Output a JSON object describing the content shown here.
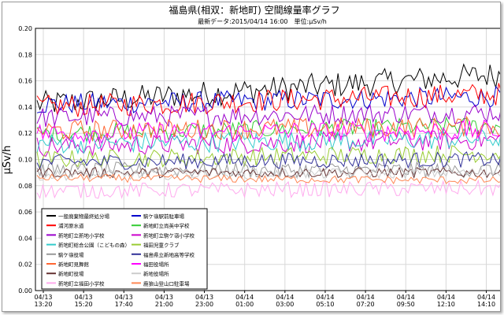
{
  "chart_data": {
    "type": "line",
    "title": "福島県(相双：新地町) 空間線量率グラフ",
    "subtitle": "最新データ:2015/04/14 16:00　単位:μSv/h",
    "ylabel": "μSv/h",
    "ylim": [
      0,
      0.2
    ],
    "yticks": [
      "0.00",
      "0.02",
      "0.04",
      "0.06",
      "0.08",
      "0.10",
      "0.12",
      "0.14",
      "0.16",
      "0.18",
      "0.20"
    ],
    "xtick_labels": [
      [
        "04/13",
        "13:20"
      ],
      [
        "04/13",
        "15:20"
      ],
      [
        "04/13",
        "17:40"
      ],
      [
        "04/13",
        "21:00"
      ],
      [
        "04/13",
        "23:00"
      ],
      [
        "04/14",
        "01:00"
      ],
      [
        "04/14",
        "03:00"
      ],
      [
        "04/14",
        "05:10"
      ],
      [
        "04/14",
        "07:20"
      ],
      [
        "04/14",
        "09:50"
      ],
      [
        "04/14",
        "12:10"
      ],
      [
        "04/14",
        "14:10"
      ]
    ],
    "grid": true,
    "legend_position": "bottom-left",
    "series": [
      {
        "name": "一般廃棄物最終処分場",
        "color": "#000000",
        "start": 0.142,
        "end": 0.165,
        "noise": 0.01
      },
      {
        "name": "駒ケ嶺駅前駐車場",
        "color": "#0000cc",
        "start": 0.142,
        "end": 0.148,
        "noise": 0.008
      },
      {
        "name": "浦河原水道",
        "color": "#ff0000",
        "start": 0.14,
        "end": 0.15,
        "noise": 0.009
      },
      {
        "name": "新地町立尚英中学校",
        "color": "#33cc33",
        "start": 0.12,
        "end": 0.126,
        "noise": 0.007
      },
      {
        "name": "新地町立新地小学校",
        "color": "#9900cc",
        "start": 0.132,
        "end": 0.136,
        "noise": 0.008
      },
      {
        "name": "新地町立駒ケ嶺小学校",
        "color": "#cc00cc",
        "start": 0.11,
        "end": 0.115,
        "noise": 0.008
      },
      {
        "name": "新地町総合公園（こどもの森）",
        "color": "#33cccc",
        "start": 0.112,
        "end": 0.116,
        "noise": 0.008
      },
      {
        "name": "福田児童クラブ",
        "color": "#99cc33",
        "start": 0.1,
        "end": 0.105,
        "noise": 0.007
      },
      {
        "name": "駒ケ嶺役場",
        "color": "#999999",
        "start": 0.092,
        "end": 0.092,
        "noise": 0.006
      },
      {
        "name": "福島県立新地高等学校",
        "color": "#333399",
        "start": 0.098,
        "end": 0.1,
        "noise": 0.006
      },
      {
        "name": "新地町見舞館",
        "color": "#ff6633",
        "start": 0.122,
        "end": 0.125,
        "noise": 0.008
      },
      {
        "name": "福田役場所",
        "color": "#ff00ff",
        "start": 0.12,
        "end": 0.122,
        "noise": 0.008
      },
      {
        "name": "新地町役場",
        "color": "#663333",
        "start": 0.09,
        "end": 0.09,
        "noise": 0.004
      },
      {
        "name": "新地役場所",
        "color": "#cccccc",
        "start": 0.088,
        "end": 0.09,
        "noise": 0.004
      },
      {
        "name": "新地町立福田小学校",
        "color": "#ffaaee",
        "start": 0.076,
        "end": 0.078,
        "noise": 0.006
      },
      {
        "name": "鹿狼山登山口駐車場",
        "color": "#ff8855",
        "start": 0.086,
        "end": 0.084,
        "noise": 0.003
      }
    ]
  }
}
